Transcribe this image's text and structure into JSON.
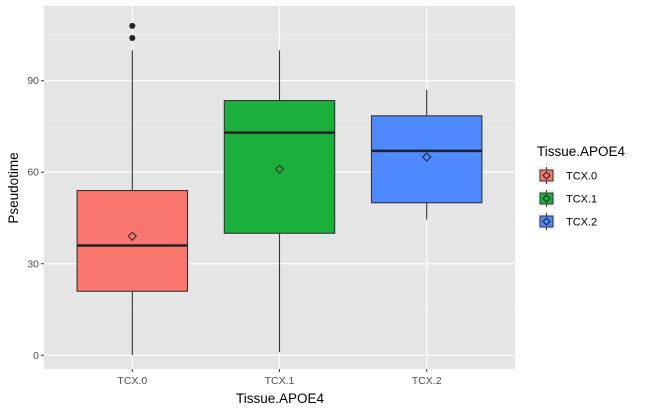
{
  "chart_data": {
    "type": "boxplot",
    "xlabel": "Tissue.APOE4",
    "ylabel": "Pseudotime",
    "ylim": [
      -4.5,
      114.5
    ],
    "yticks": [
      0,
      30,
      60,
      90
    ],
    "categories": [
      "TCX.0",
      "TCX.1",
      "TCX.2"
    ],
    "boxes": [
      {
        "category": "TCX.0",
        "color": "#F8766D",
        "whisker_low": 0,
        "q1": 21,
        "median": 36,
        "q3": 54,
        "whisker_high": 100,
        "mean": 39,
        "outliers": [
          104,
          108
        ]
      },
      {
        "category": "TCX.1",
        "color": "#1BB03B",
        "whisker_low": 1,
        "q1": 40,
        "median": 73,
        "q3": 83.5,
        "whisker_high": 100,
        "mean": 61,
        "outliers": []
      },
      {
        "category": "TCX.2",
        "color": "#4F89FF",
        "whisker_low": 44.5,
        "q1": 50,
        "median": 67,
        "q3": 78.5,
        "whisker_high": 87,
        "mean": 65,
        "outliers": []
      }
    ],
    "legend": {
      "title": "Tissue.APOE4",
      "position": "right",
      "items": [
        "TCX.0",
        "TCX.1",
        "TCX.2"
      ]
    },
    "grid": true,
    "background": "#E5E5E5"
  }
}
